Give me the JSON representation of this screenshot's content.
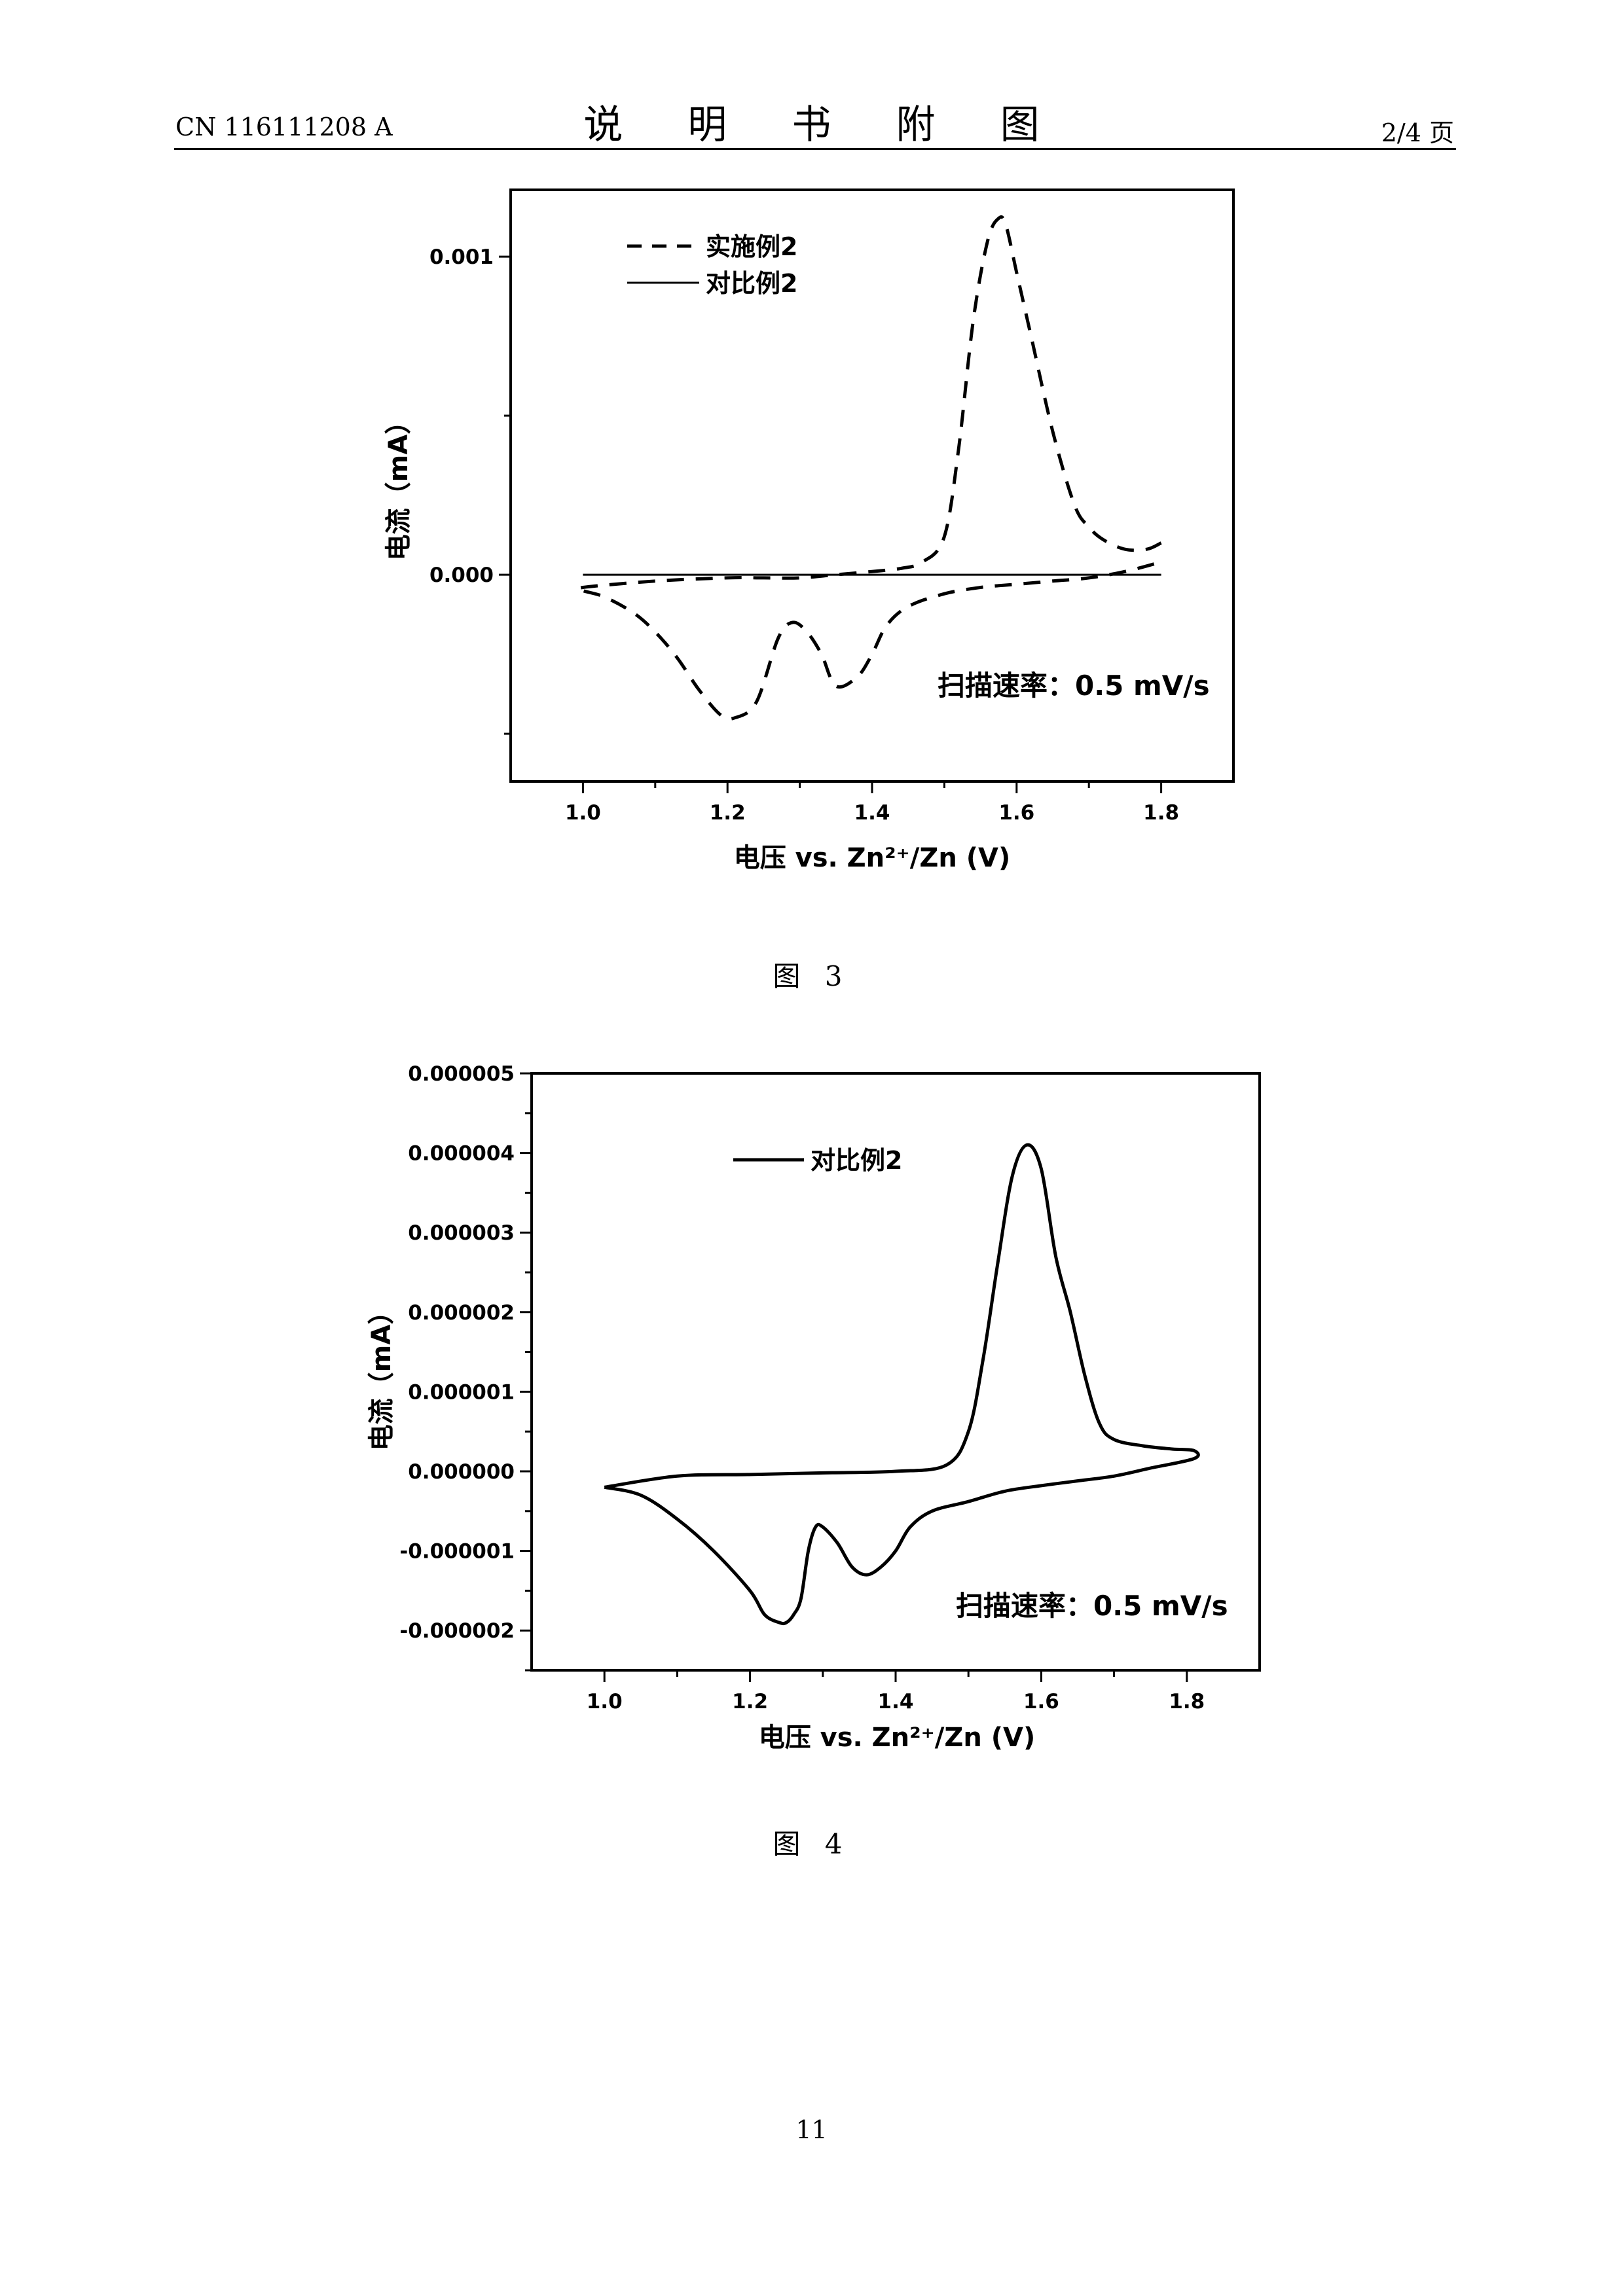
{
  "header": {
    "doc_number": "CN 116111208 A",
    "title": "说 明 书 附 图",
    "page_of": "2/4 页"
  },
  "figures": [
    {
      "caption": "图 3",
      "annotation": "扫描速率：0.5 mV/s",
      "xlabel": "电压 vs. Zn²⁺/Zn (V)",
      "ylabel": "电流（mA）",
      "xticks": [
        "1.0",
        "1.2",
        "1.4",
        "1.6",
        "1.8"
      ],
      "yticks": [
        "0.000",
        "0.001"
      ]
    },
    {
      "caption": "图 4",
      "annotation": "扫描速率：0.5 mV/s",
      "xlabel": "电压 vs. Zn²⁺/Zn (V)",
      "ylabel": "电流（mA）",
      "xticks": [
        "1.0",
        "1.2",
        "1.4",
        "1.6",
        "1.8"
      ],
      "yticks": [
        "-0.000002",
        "-0.000001",
        "0.000000",
        "0.000001",
        "0.000002",
        "0.000003",
        "0.000004",
        "0.000005"
      ]
    }
  ],
  "page_number": "11",
  "chart_data": [
    {
      "type": "line",
      "xlabel": "电压 vs. Zn²⁺/Zn (V)",
      "ylabel": "电流（mA）",
      "xlim": [
        0.9,
        1.9
      ],
      "ylim": [
        -0.00065,
        0.00121
      ],
      "xticks": [
        1.0,
        1.2,
        1.4,
        1.6,
        1.8
      ],
      "yticks": [
        0.0,
        0.001
      ],
      "legend": "top-left",
      "annotation": "扫描速率：0.5 mV/s",
      "series": [
        {
          "name": "实施例2",
          "style": "dashed",
          "color": "#000000",
          "x": [
            1.8,
            1.78,
            1.75,
            1.72,
            1.7,
            1.68,
            1.65,
            1.62,
            1.6,
            1.585,
            1.575,
            1.56,
            1.54,
            1.52,
            1.5,
            1.47,
            1.44,
            1.4,
            1.35,
            1.3,
            1.25,
            1.2,
            1.1,
            1.0,
            1.0,
            1.03,
            1.07,
            1.1,
            1.13,
            1.16,
            1.19,
            1.21,
            1.24,
            1.27,
            1.29,
            1.31,
            1.33,
            1.35,
            1.38,
            1.4,
            1.42,
            1.45,
            1.5,
            1.55,
            1.6,
            1.65,
            1.7,
            1.75,
            1.8
          ],
          "y": [
            0.0001,
            8e-05,
            8e-05,
            0.00011,
            0.00015,
            0.00022,
            0.00045,
            0.00075,
            0.00095,
            0.0011,
            0.00112,
            0.00105,
            0.0008,
            0.0004,
            0.00012,
            4e-05,
            2e-05,
            1e-05,
            0.0,
            -1e-05,
            -1e-05,
            -1e-05,
            -2e-05,
            -4e-05,
            -5e-05,
            -7e-05,
            -0.00012,
            -0.00018,
            -0.00026,
            -0.00036,
            -0.00044,
            -0.00045,
            -0.0004,
            -0.0002,
            -0.00015,
            -0.00018,
            -0.00025,
            -0.00035,
            -0.00032,
            -0.00025,
            -0.00016,
            -0.0001,
            -6e-05,
            -4e-05,
            -3e-05,
            -2e-05,
            -1e-05,
            1e-05,
            4e-05
          ]
        },
        {
          "name": "对比例2",
          "style": "solid",
          "color": "#000000",
          "x": [
            1.0,
            1.8
          ],
          "y": [
            0.0,
            0.0
          ]
        }
      ]
    },
    {
      "type": "line",
      "xlabel": "电压 vs. Zn²⁺/Zn (V)",
      "ylabel": "电流（mA）",
      "xlim": [
        0.9,
        1.9
      ],
      "ylim": [
        -2.5e-06,
        5e-06
      ],
      "xticks": [
        1.0,
        1.2,
        1.4,
        1.6,
        1.8
      ],
      "yticks": [
        -2e-06,
        -1e-06,
        0.0,
        1e-06,
        2e-06,
        3e-06,
        4e-06,
        5e-06
      ],
      "legend": "top-left",
      "annotation": "扫描速率：0.5 mV/s",
      "series": [
        {
          "name": "对比例2",
          "style": "solid",
          "color": "#000000",
          "x": [
            1.0,
            1.1,
            1.2,
            1.3,
            1.4,
            1.47,
            1.5,
            1.52,
            1.54,
            1.56,
            1.58,
            1.6,
            1.62,
            1.64,
            1.66,
            1.68,
            1.7,
            1.74,
            1.78,
            1.81,
            1.81,
            1.75,
            1.7,
            1.65,
            1.6,
            1.55,
            1.5,
            1.45,
            1.42,
            1.4,
            1.38,
            1.36,
            1.34,
            1.32,
            1.3,
            1.29,
            1.28,
            1.27,
            1.26,
            1.25,
            1.24,
            1.22,
            1.2,
            1.15,
            1.1,
            1.05,
            1.0
          ],
          "y": [
            -2e-07,
            -6e-08,
            -4e-08,
            -2e-08,
            0.0,
            8e-08,
            5e-07,
            1.4e-06,
            2.6e-06,
            3.7e-06,
            4.1e-06,
            3.8e-06,
            2.7e-06,
            2e-06,
            1.2e-06,
            6e-07,
            4e-07,
            3.2e-07,
            2.8e-07,
            2.6e-07,
            1.6e-07,
            4e-08,
            -6e-08,
            -1.2e-07,
            -1.8e-07,
            -2.5e-07,
            -3.8e-07,
            -5e-07,
            -7e-07,
            -1e-06,
            -1.2e-06,
            -1.3e-06,
            -1.2e-06,
            -9e-07,
            -7e-07,
            -7e-07,
            -1e-06,
            -1.6e-06,
            -1.8e-06,
            -1.9e-06,
            -1.9e-06,
            -1.8e-06,
            -1.5e-06,
            -1e-06,
            -6e-07,
            -3e-07,
            -2e-07
          ]
        }
      ]
    }
  ]
}
